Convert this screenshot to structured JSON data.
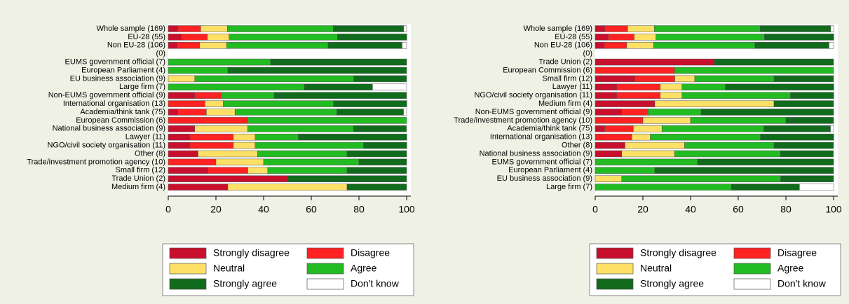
{
  "chart_data": [
    {
      "type": "bar",
      "orientation": "horizontal",
      "stacked": true,
      "categories": [
        "Whole sample (169)",
        "EU-28 (55)",
        "Non EU-28 (106)",
        "(0)",
        "EUMS government official (7)",
        "European Parliament (4)",
        "EU business association (9)",
        "Large firm (7)",
        "Non-EUMS government official (9)",
        "International organisation (13)",
        "Academia/think tank (75)",
        "European Commission (6)",
        "National business association (9)",
        "Lawyer (11)",
        "NGO/civil society organisation (11)",
        "Other (8)",
        "Trade/investment promotion agency (10)",
        "Small firm (12)",
        "Trade Union (2)",
        "Medium firm (4)"
      ],
      "series": [
        {
          "name": "Strongly disagree",
          "color": "#c8102e",
          "values": [
            4.1,
            5.5,
            3.8,
            0,
            0,
            0,
            0,
            0,
            11.1,
            0,
            4,
            0,
            11.1,
            9.1,
            9.1,
            12.5,
            0,
            16.7,
            50,
            25
          ]
        },
        {
          "name": "Disagree",
          "color": "#ff2222",
          "values": [
            9.5,
            10.9,
            9.4,
            0,
            0,
            0,
            0,
            0,
            11.1,
            15.4,
            12,
            33.3,
            0,
            18.2,
            18.2,
            0,
            20,
            16.7,
            0,
            0
          ]
        },
        {
          "name": "Neutral",
          "color": "#ffe066",
          "values": [
            11.2,
            9.1,
            11.3,
            0,
            0,
            0,
            11.1,
            0,
            0,
            7.7,
            12,
            0,
            22.2,
            9.1,
            9.1,
            25,
            20,
            8.3,
            0,
            50
          ]
        },
        {
          "name": "Agree",
          "color": "#22bb22",
          "values": [
            44.4,
            45.5,
            42.5,
            0,
            42.9,
            25,
            66.7,
            57.1,
            22.2,
            46.2,
            42.7,
            66.7,
            44.4,
            18.2,
            45.5,
            37.5,
            40,
            33.3,
            0,
            0
          ]
        },
        {
          "name": "Strongly agree",
          "color": "#116b1c",
          "values": [
            29.6,
            29.1,
            31.1,
            0,
            57.1,
            75,
            22.2,
            28.6,
            55.6,
            30.8,
            28,
            0,
            22.2,
            45.5,
            18.2,
            25,
            20,
            25,
            50,
            25
          ]
        },
        {
          "name": "Don't know",
          "color": "#ffffff",
          "values": [
            1.2,
            0,
            1.9,
            0,
            0,
            0,
            0,
            14.3,
            0,
            0,
            1.3,
            0,
            0,
            0,
            0,
            0,
            0,
            0,
            0,
            0
          ]
        }
      ],
      "xlim": [
        0,
        100
      ],
      "xticks": [
        0,
        20,
        40,
        60,
        80,
        100
      ]
    },
    {
      "type": "bar",
      "orientation": "horizontal",
      "stacked": true,
      "categories": [
        "Whole sample (169)",
        "EU-28 (55)",
        "Non EU-28 (106)",
        "(0)",
        "Trade Union (2)",
        "European Commission (6)",
        "Small firm (12)",
        "Lawyer (11)",
        "NGO/civil society organisation (11)",
        "Medium firm (4)",
        "Non-EUMS government official (9)",
        "Trade/investment promotion agency (10)",
        "Academia/think tank (75)",
        "International organisation (13)",
        "Other (8)",
        "National business association (9)",
        "EUMS government official (7)",
        "European Parliament (4)",
        "EU business association (9)",
        "Large firm (7)"
      ],
      "series": [
        {
          "name": "Strongly disagree",
          "color": "#c8102e",
          "values": [
            4.1,
            5.5,
            3.8,
            0,
            50,
            0,
            16.7,
            9.1,
            9.1,
            25,
            11.1,
            0,
            4,
            0,
            12.5,
            11.1,
            0,
            0,
            0,
            0
          ]
        },
        {
          "name": "Disagree",
          "color": "#ff2222",
          "values": [
            9.5,
            10.9,
            9.4,
            0,
            0,
            33.3,
            16.7,
            18.2,
            18.2,
            0,
            11.1,
            20,
            12,
            15.4,
            0,
            0,
            0,
            0,
            0,
            0
          ]
        },
        {
          "name": "Neutral",
          "color": "#ffe066",
          "values": [
            11.2,
            9.1,
            11.3,
            0,
            0,
            0,
            8.3,
            9.1,
            9.1,
            50,
            0,
            20,
            12,
            7.7,
            25,
            22.2,
            0,
            0,
            11.1,
            0
          ]
        },
        {
          "name": "Agree",
          "color": "#22bb22",
          "values": [
            44.4,
            45.5,
            42.5,
            0,
            0,
            66.7,
            33.3,
            18.2,
            45.5,
            0,
            22.2,
            40,
            42.7,
            46.2,
            37.5,
            44.4,
            42.9,
            25,
            66.7,
            57.1
          ]
        },
        {
          "name": "Strongly agree",
          "color": "#116b1c",
          "values": [
            29.6,
            29.1,
            31.1,
            0,
            50,
            0,
            25,
            45.5,
            18.2,
            25,
            55.6,
            20,
            28,
            30.8,
            25,
            22.2,
            57.1,
            75,
            22.2,
            28.6
          ]
        },
        {
          "name": "Don't know",
          "color": "#ffffff",
          "values": [
            1.2,
            0,
            1.9,
            0,
            0,
            0,
            0,
            0,
            0,
            0,
            0,
            0,
            1.3,
            0,
            0,
            0,
            0,
            0,
            0,
            14.3
          ]
        }
      ],
      "xlim": [
        0,
        100
      ],
      "xticks": [
        0,
        20,
        40,
        60,
        80,
        100
      ]
    }
  ]
}
